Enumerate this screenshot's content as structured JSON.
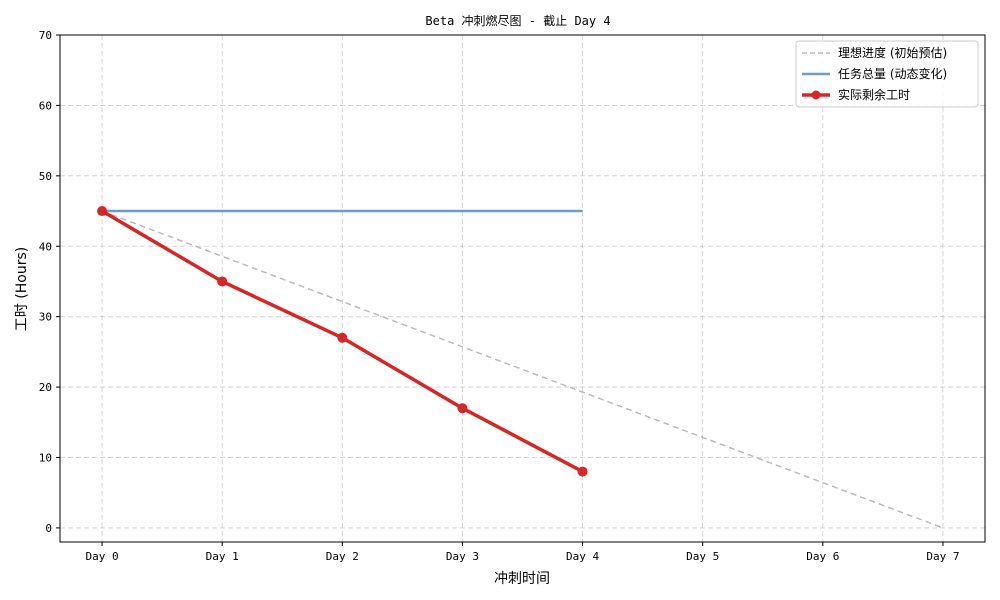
{
  "chart_data": {
    "type": "line",
    "title": "Beta 冲刺燃尽图 - 截止 Day 4",
    "xlabel": "冲刺时间",
    "ylabel": "工时 (Hours)",
    "categories": [
      "Day 0",
      "Day 1",
      "Day 2",
      "Day 3",
      "Day 4",
      "Day 5",
      "Day 6",
      "Day 7"
    ],
    "ylim": [
      -2,
      70
    ],
    "yticks": [
      0,
      10,
      20,
      30,
      40,
      50,
      60,
      70
    ],
    "grid": true,
    "legend_position": "top-right",
    "series": [
      {
        "name": "理想进度 (初始预估)",
        "x": [
          0,
          7
        ],
        "values": [
          45,
          0
        ],
        "color": "#bbbbbb",
        "style": "dashed"
      },
      {
        "name": "任务总量 (动态变化)",
        "x": [
          0,
          1,
          2,
          3,
          4
        ],
        "values": [
          45,
          45,
          45,
          45,
          45
        ],
        "color": "#6a9ec5",
        "style": "solid"
      },
      {
        "name": "实际剩余工时",
        "x": [
          0,
          1,
          2,
          3,
          4
        ],
        "values": [
          45,
          35,
          27,
          17,
          8
        ],
        "color": "#d62728",
        "style": "solid-markers"
      }
    ]
  }
}
